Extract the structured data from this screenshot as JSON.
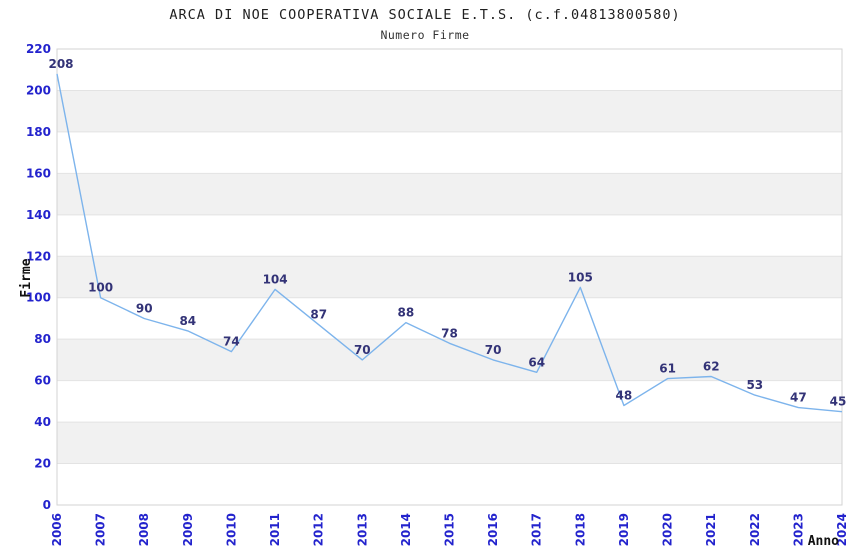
{
  "chart_data": {
    "type": "line",
    "title": "ARCA DI NOE COOPERATIVA SOCIALE E.T.S. (c.f.04813800580)",
    "subtitle": "Numero Firme",
    "xlabel": "Anno",
    "ylabel": "Firme",
    "x": [
      "2006",
      "2007",
      "2008",
      "2009",
      "2010",
      "2011",
      "2012",
      "2013",
      "2014",
      "2015",
      "2016",
      "2017",
      "2018",
      "2019",
      "2020",
      "2021",
      "2022",
      "2023",
      "2024"
    ],
    "series": [
      {
        "name": "Numero Firme",
        "values": [
          208,
          100,
          90,
          84,
          74,
          104,
          87,
          70,
          88,
          78,
          70,
          64,
          105,
          48,
          61,
          62,
          53,
          47,
          45
        ]
      }
    ],
    "ylim": [
      0,
      220
    ],
    "ytick_step": 20,
    "grid": "horizontal-bands-alternating",
    "legend": "none",
    "data_labels": "shown-above-points",
    "colors": {
      "line": "#7db4ec",
      "tick_label": "#2323cd",
      "data_label": "#333377",
      "band_fill": "#f1f1f1",
      "grid_line": "#e3e3e3",
      "plot_border": "#d3d3d3",
      "title_text": "#1f1f1f"
    }
  }
}
